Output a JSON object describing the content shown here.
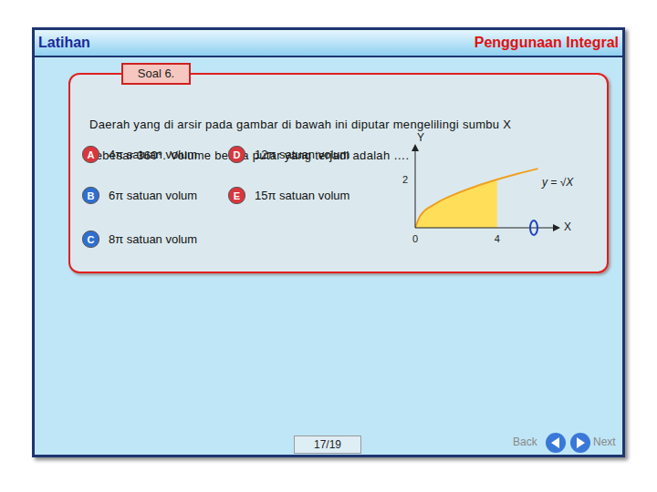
{
  "header": {
    "left": "Latihan",
    "right": "Penggunaan Integral"
  },
  "tab": "Soal 6.",
  "question": "Daerah yang di arsir pada gambar di bawah ini diputar mengelilingi sumbu X sebesar 360°. Volume benda putar yang terjadi adalah ….",
  "options": [
    {
      "key": "A",
      "text": "4π satuan volum"
    },
    {
      "key": "B",
      "text": "6π satuan volum"
    },
    {
      "key": "C",
      "text": "8π satuan volum"
    },
    {
      "key": "D",
      "text": "12π satuan volum"
    },
    {
      "key": "E",
      "text": "15π satuan volum"
    }
  ],
  "chart_data": {
    "type": "area",
    "x": [
      0,
      0.25,
      1,
      2,
      3,
      4,
      5,
      6
    ],
    "values": [
      0,
      0.5,
      1,
      1.41,
      1.73,
      2,
      2.24,
      2.45
    ],
    "shaded_range": [
      0,
      4
    ],
    "curve_label": "y = √X",
    "x_label": "X",
    "y_label": "Y",
    "xlim": [
      0,
      7
    ],
    "ylim": [
      0,
      3.4
    ],
    "xticks": [
      0,
      4
    ],
    "yticks": [
      2
    ],
    "color": "#f0a020"
  },
  "page": "17/19",
  "nav": {
    "back": "Back",
    "next": "Next"
  }
}
